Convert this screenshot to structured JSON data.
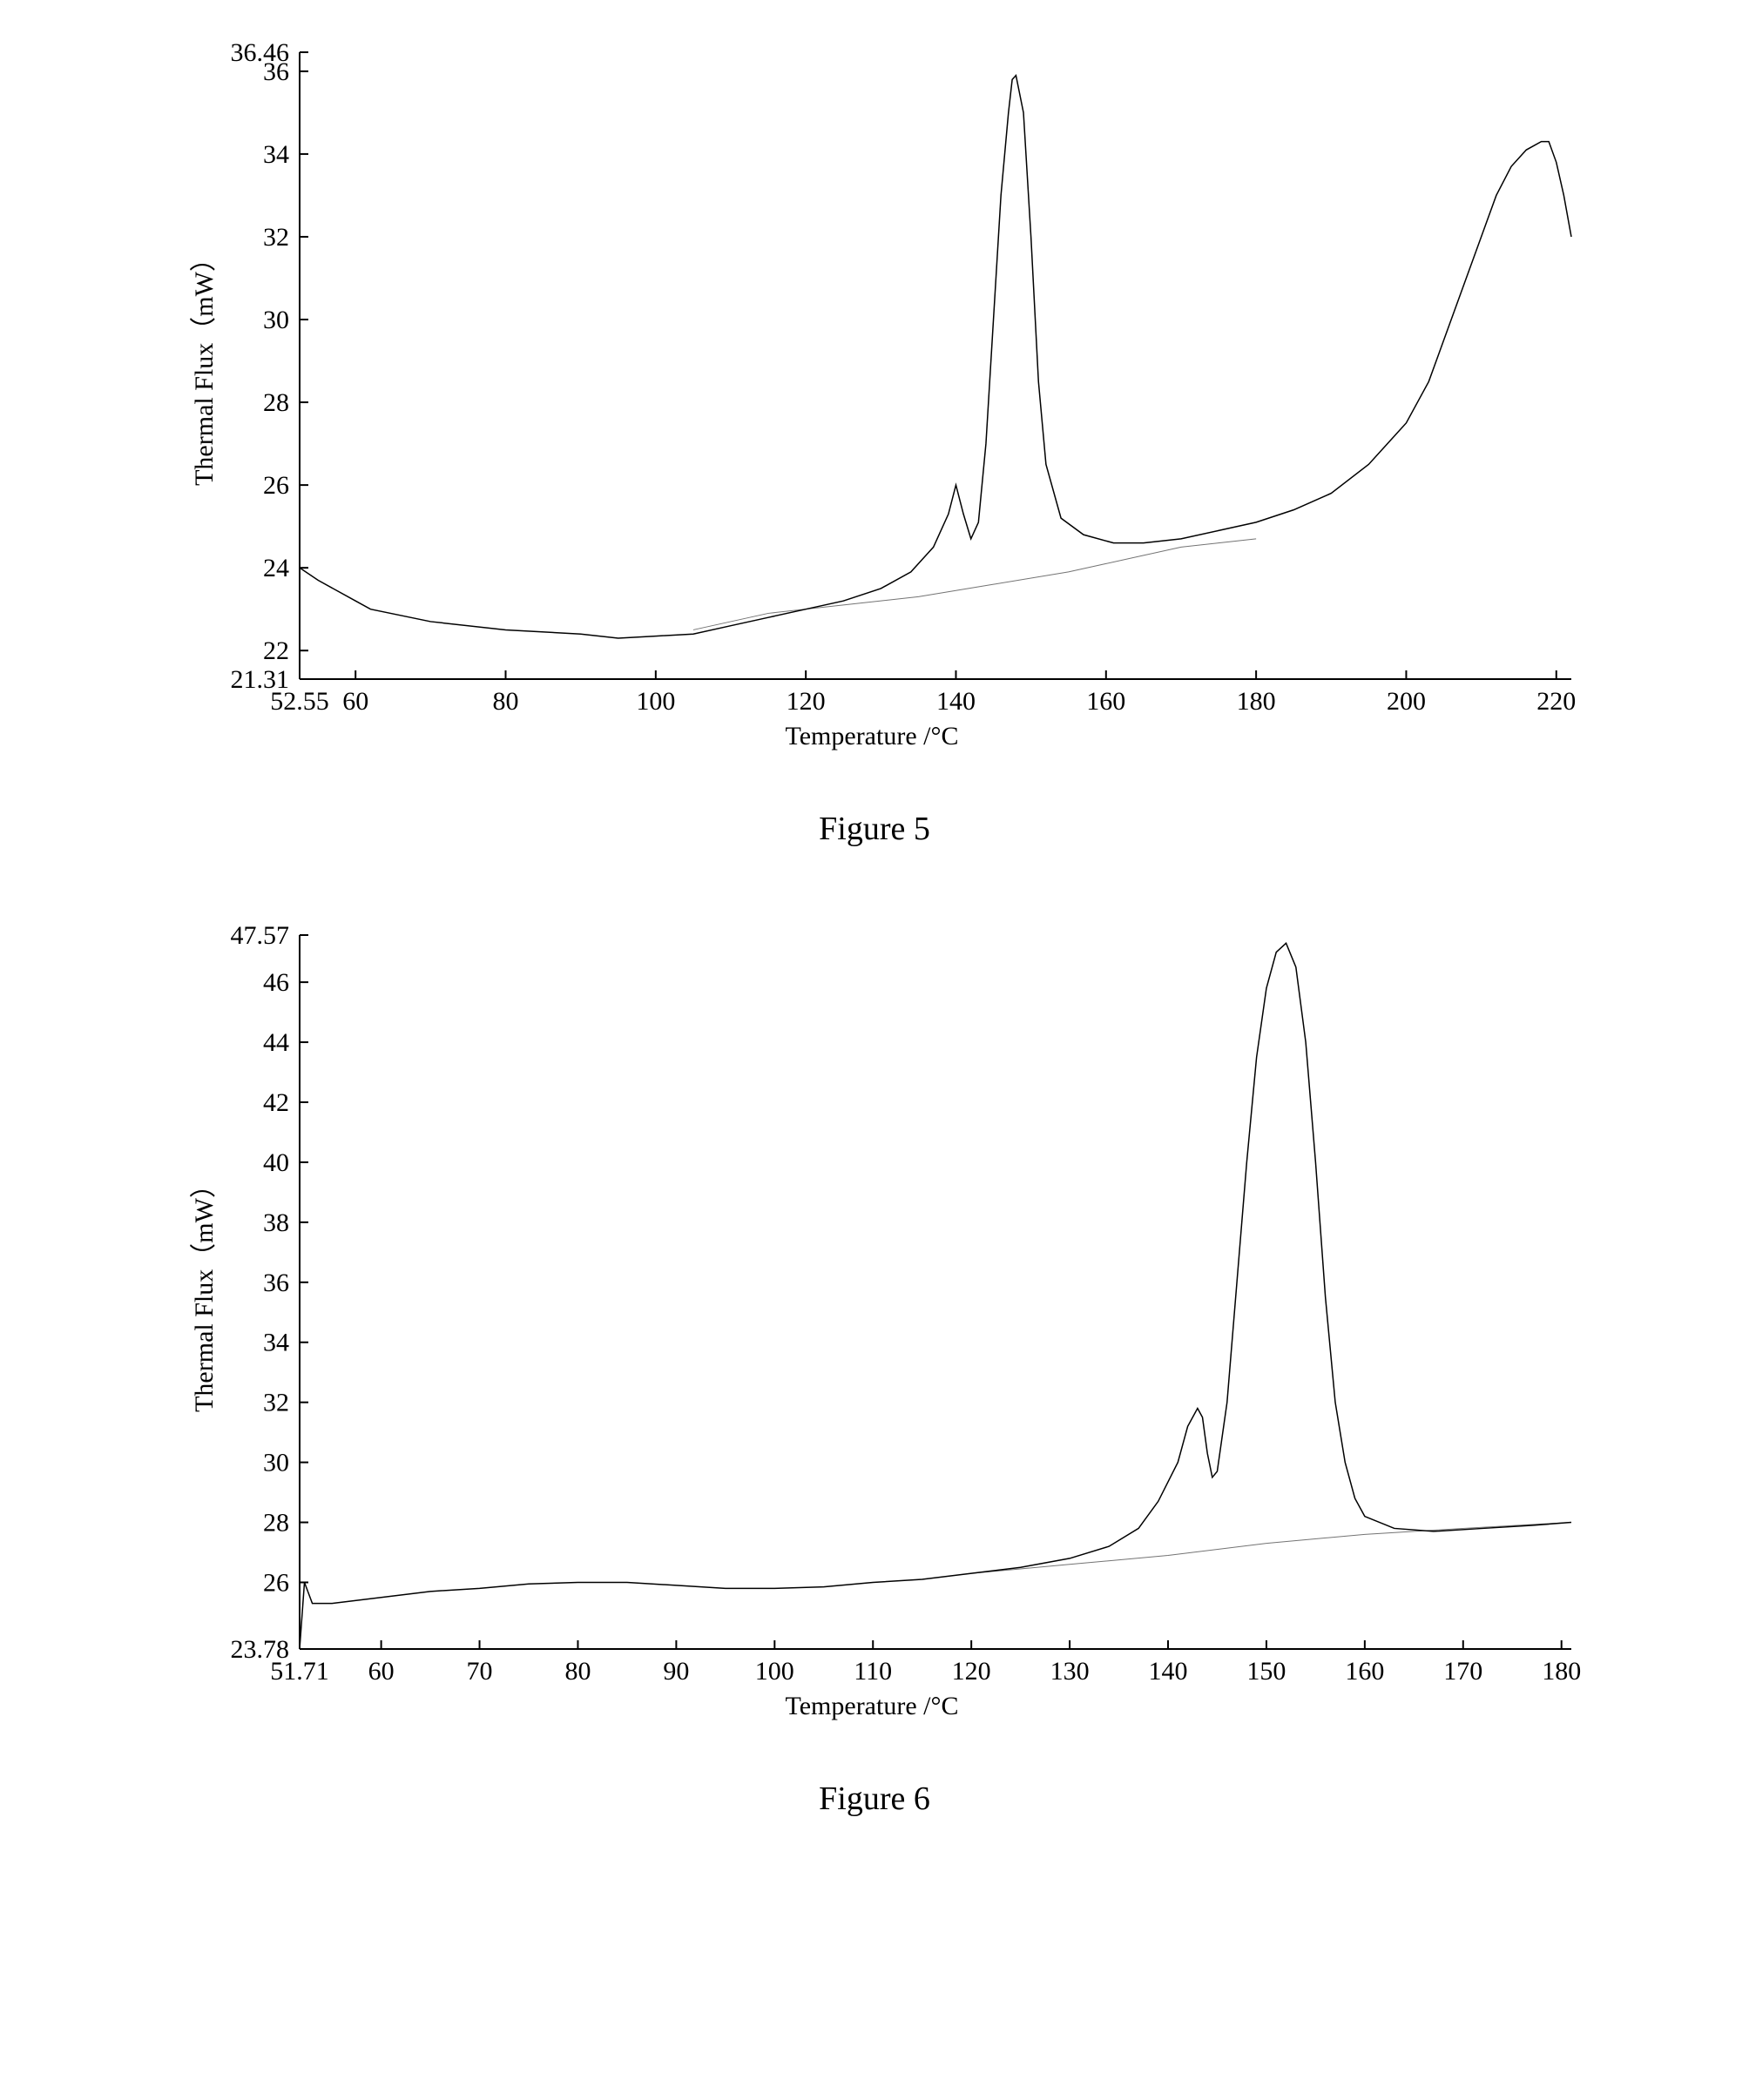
{
  "page_background": "#ffffff",
  "line_color": "#000000",
  "axis_color": "#000000",
  "text_color": "#000000",
  "figure5": {
    "caption": "Figure 5",
    "type": "line",
    "x_label": "Temperature /°C",
    "y_label": "Thermal Flux（mW）",
    "x_ticks": [
      "52.55",
      "60",
      "80",
      "100",
      "120",
      "140",
      "160",
      "180",
      "200",
      "220"
    ],
    "x_tick_values": [
      52.55,
      60,
      80,
      100,
      120,
      140,
      160,
      180,
      200,
      220
    ],
    "y_ticks": [
      "21.31",
      "22",
      "24",
      "26",
      "28",
      "30",
      "32",
      "34",
      "36",
      "36.46"
    ],
    "y_tick_values": [
      21.31,
      22,
      24,
      26,
      28,
      30,
      32,
      34,
      36,
      36.46
    ],
    "xlim": [
      52.55,
      222
    ],
    "ylim": [
      21.31,
      36.46
    ],
    "line_width": 1.5,
    "curve": [
      [
        52.55,
        24.0
      ],
      [
        55,
        23.7
      ],
      [
        60,
        23.2
      ],
      [
        62,
        23.0
      ],
      [
        70,
        22.7
      ],
      [
        80,
        22.5
      ],
      [
        90,
        22.4
      ],
      [
        95,
        22.3
      ],
      [
        100,
        22.35
      ],
      [
        105,
        22.4
      ],
      [
        110,
        22.6
      ],
      [
        115,
        22.8
      ],
      [
        120,
        23.0
      ],
      [
        125,
        23.2
      ],
      [
        130,
        23.5
      ],
      [
        134,
        23.9
      ],
      [
        137,
        24.5
      ],
      [
        139,
        25.3
      ],
      [
        140,
        26.0
      ],
      [
        141,
        25.3
      ],
      [
        142,
        24.7
      ],
      [
        143,
        25.1
      ],
      [
        144,
        27.0
      ],
      [
        145,
        30.0
      ],
      [
        146,
        33.0
      ],
      [
        147,
        35.0
      ],
      [
        147.5,
        35.8
      ],
      [
        148,
        35.9
      ],
      [
        149,
        35.0
      ],
      [
        150,
        32.0
      ],
      [
        151,
        28.5
      ],
      [
        152,
        26.5
      ],
      [
        154,
        25.2
      ],
      [
        157,
        24.8
      ],
      [
        161,
        24.6
      ],
      [
        165,
        24.6
      ],
      [
        170,
        24.7
      ],
      [
        175,
        24.9
      ],
      [
        180,
        25.1
      ],
      [
        185,
        25.4
      ],
      [
        190,
        25.8
      ],
      [
        195,
        26.5
      ],
      [
        200,
        27.5
      ],
      [
        203,
        28.5
      ],
      [
        205,
        29.5
      ],
      [
        208,
        31.0
      ],
      [
        210,
        32.0
      ],
      [
        212,
        33.0
      ],
      [
        214,
        33.7
      ],
      [
        216,
        34.1
      ],
      [
        218,
        34.3
      ],
      [
        219,
        34.3
      ],
      [
        220,
        33.8
      ],
      [
        221,
        33.0
      ],
      [
        222,
        32.0
      ]
    ],
    "baseline": [
      [
        105,
        22.5
      ],
      [
        115,
        22.9
      ],
      [
        125,
        23.1
      ],
      [
        135,
        23.3
      ],
      [
        145,
        23.6
      ],
      [
        155,
        23.9
      ],
      [
        160,
        24.1
      ],
      [
        165,
        24.3
      ],
      [
        170,
        24.5
      ],
      [
        175,
        24.6
      ],
      [
        180,
        24.7
      ]
    ]
  },
  "figure6": {
    "caption": "Figure 6",
    "type": "line",
    "x_label": "Temperature /°C",
    "y_label": "Thermal Flux（mW）",
    "x_ticks": [
      "51.71",
      "60",
      "70",
      "80",
      "90",
      "100",
      "110",
      "120",
      "130",
      "140",
      "150",
      "160",
      "170",
      "180"
    ],
    "x_tick_values": [
      51.71,
      60,
      70,
      80,
      90,
      100,
      110,
      120,
      130,
      140,
      150,
      160,
      170,
      180
    ],
    "y_ticks": [
      "23.78",
      "26",
      "28",
      "30",
      "32",
      "34",
      "36",
      "38",
      "40",
      "42",
      "44",
      "46",
      "47.57"
    ],
    "y_tick_values": [
      23.78,
      26,
      28,
      30,
      32,
      34,
      36,
      38,
      40,
      42,
      44,
      46,
      47.57
    ],
    "xlim": [
      51.71,
      181
    ],
    "ylim": [
      23.78,
      47.57
    ],
    "line_width": 1.5,
    "curve": [
      [
        51.71,
        23.78
      ],
      [
        52.2,
        26.0
      ],
      [
        53,
        25.3
      ],
      [
        55,
        25.3
      ],
      [
        60,
        25.5
      ],
      [
        65,
        25.7
      ],
      [
        70,
        25.8
      ],
      [
        75,
        25.95
      ],
      [
        80,
        26.0
      ],
      [
        85,
        26.0
      ],
      [
        90,
        25.9
      ],
      [
        95,
        25.8
      ],
      [
        100,
        25.8
      ],
      [
        105,
        25.85
      ],
      [
        110,
        26.0
      ],
      [
        115,
        26.1
      ],
      [
        120,
        26.3
      ],
      [
        125,
        26.5
      ],
      [
        130,
        26.8
      ],
      [
        134,
        27.2
      ],
      [
        137,
        27.8
      ],
      [
        139,
        28.7
      ],
      [
        141,
        30.0
      ],
      [
        142,
        31.2
      ],
      [
        143,
        31.8
      ],
      [
        143.5,
        31.5
      ],
      [
        144,
        30.3
      ],
      [
        144.5,
        29.5
      ],
      [
        145,
        29.7
      ],
      [
        146,
        32.0
      ],
      [
        147,
        36.0
      ],
      [
        148,
        40.0
      ],
      [
        149,
        43.5
      ],
      [
        150,
        45.8
      ],
      [
        151,
        47.0
      ],
      [
        152,
        47.3
      ],
      [
        153,
        46.5
      ],
      [
        154,
        44.0
      ],
      [
        155,
        40.0
      ],
      [
        156,
        35.5
      ],
      [
        157,
        32.0
      ],
      [
        158,
        30.0
      ],
      [
        159,
        28.8
      ],
      [
        160,
        28.2
      ],
      [
        163,
        27.8
      ],
      [
        167,
        27.7
      ],
      [
        172,
        27.8
      ],
      [
        177,
        27.9
      ],
      [
        181,
        28.0
      ]
    ],
    "baseline": [
      [
        120,
        26.3
      ],
      [
        130,
        26.6
      ],
      [
        140,
        26.9
      ],
      [
        150,
        27.3
      ],
      [
        160,
        27.6
      ],
      [
        170,
        27.8
      ],
      [
        181,
        28.0
      ]
    ]
  }
}
